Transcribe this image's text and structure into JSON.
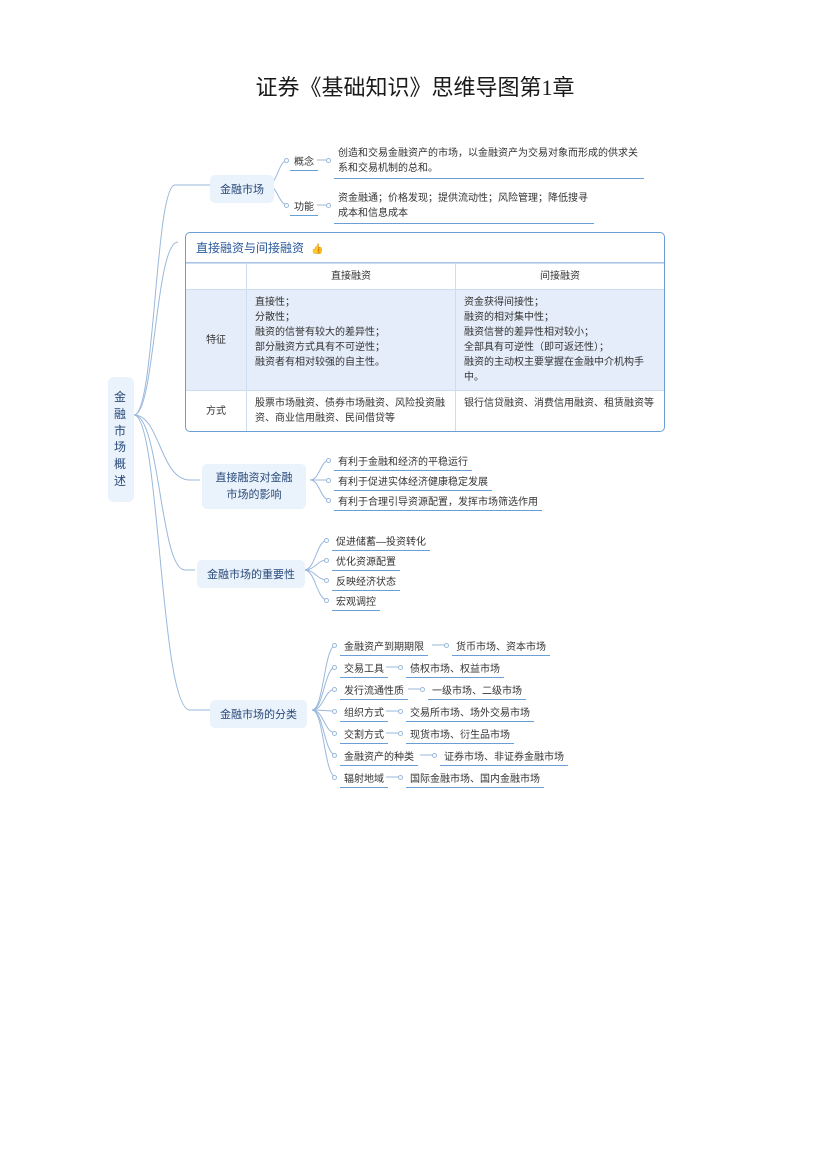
{
  "title": "证券《基础知识》思维导图第1章",
  "root": "金融市场概述",
  "colors": {
    "node_bg": "#eaf2fb",
    "node_text": "#2a4a7a",
    "line": "#9ab8db",
    "border": "#6a9fd6",
    "hl_bg": "#e4edf9",
    "thumb": "#e6a030"
  },
  "branch1": {
    "label": "金融市场",
    "sub": [
      {
        "k": "概念",
        "v": "创造和交易金融资产的市场，以金融资产为交易对象而形成的供求关系和交易机制的总和。"
      },
      {
        "k": "功能",
        "v": "资金融通；价格发现；提供流动性；风险管理；降低搜寻成本和信息成本"
      }
    ]
  },
  "table": {
    "title": "直接融资与间接融资",
    "cols": [
      "",
      "直接融资",
      "间接融资"
    ],
    "rows": [
      {
        "head": "特征",
        "hl": true,
        "a": "直接性；\n分散性；\n融资的信誉有较大的差异性；\n部分融资方式具有不可逆性；\n融资者有相对较强的自主性。",
        "b": "资金获得间接性；\n融资的相对集中性；\n融资信誉的差异性相对较小；\n全部具有可逆性（即可返还性）；\n融资的主动权主要掌握在金融中介机构手中。"
      },
      {
        "head": "方式",
        "hl": false,
        "a": "股票市场融资、债券市场融资、风险投资融资、商业信用融资、民间借贷等",
        "b": "银行信贷融资、消费信用融资、租赁融资等"
      }
    ]
  },
  "branch3": {
    "label": "直接融资对金融市场的影响",
    "items": [
      "有利于金融和经济的平稳运行",
      "有利于促进实体经济健康稳定发展",
      "有利于合理引导资源配置，发挥市场筛选作用"
    ]
  },
  "branch4": {
    "label": "金融市场的重要性",
    "items": [
      "促进储蓄—投资转化",
      "优化资源配置",
      "反映经济状态",
      "宏观调控"
    ]
  },
  "branch5": {
    "label": "金融市场的分类",
    "items": [
      {
        "k": "金融资产到期期限",
        "v": "货币市场、资本市场"
      },
      {
        "k": "交易工具",
        "v": "债权市场、权益市场"
      },
      {
        "k": "发行流通性质",
        "v": "一级市场、二级市场"
      },
      {
        "k": "组织方式",
        "v": "交易所市场、场外交易市场"
      },
      {
        "k": "交割方式",
        "v": "现货市场、衍生品市场"
      },
      {
        "k": "金融资产的种类",
        "v": "证券市场、非证券金融市场"
      },
      {
        "k": "辐射地域",
        "v": "国际金融市场、国内金融市场"
      }
    ]
  }
}
